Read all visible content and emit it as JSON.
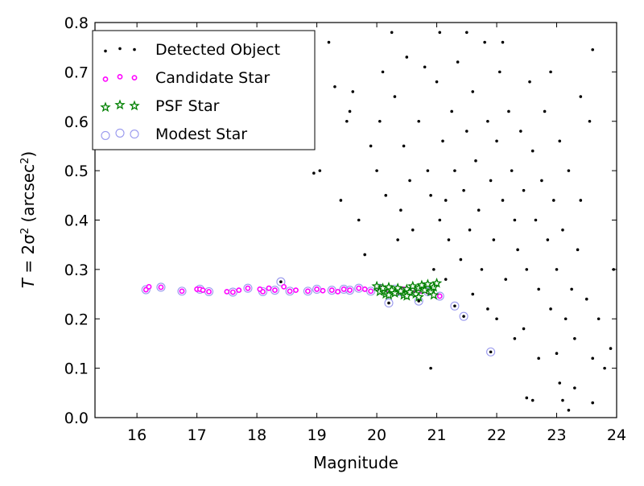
{
  "chart_data": {
    "type": "scatter",
    "title": "",
    "xlabel": "Magnitude",
    "ylabel_parts": {
      "lhs": "T",
      "eq": " = 2σ",
      "sup1": "2",
      "open": " (arcsec",
      "sup2": "2",
      "close": ")"
    },
    "xlim": [
      15.3,
      24.0
    ],
    "ylim": [
      0.0,
      0.8
    ],
    "xticks": [
      16,
      17,
      18,
      19,
      20,
      21,
      22,
      23,
      24
    ],
    "yticks": [
      0.0,
      0.1,
      0.2,
      0.3,
      0.4,
      0.5,
      0.6,
      0.7,
      0.8
    ],
    "legend_position": "top-left",
    "grid": false,
    "colors": {
      "detected": "#000000",
      "candidate": "#ff00ff",
      "psf": "#008000",
      "modest": "#9999ee"
    },
    "series": [
      {
        "name": "Detected Object",
        "marker": "dot",
        "points": [
          [
            18.4,
            0.275
          ],
          [
            20.9,
            0.1
          ],
          [
            21.9,
            0.133
          ],
          [
            20.2,
            0.232
          ],
          [
            20.7,
            0.236
          ],
          [
            21.3,
            0.226
          ],
          [
            21.45,
            0.205
          ],
          [
            19.05,
            0.5
          ],
          [
            18.95,
            0.495
          ],
          [
            19.55,
            0.62
          ],
          [
            19.5,
            0.6
          ],
          [
            19.9,
            0.55
          ],
          [
            19.4,
            0.44
          ],
          [
            19.7,
            0.4
          ],
          [
            20.1,
            0.7
          ],
          [
            20.25,
            0.78
          ],
          [
            20.8,
            0.71
          ],
          [
            19.8,
            0.33
          ],
          [
            20.0,
            0.5
          ],
          [
            20.05,
            0.6
          ],
          [
            20.3,
            0.65
          ],
          [
            20.5,
            0.73
          ],
          [
            20.45,
            0.55
          ],
          [
            20.55,
            0.48
          ],
          [
            20.4,
            0.42
          ],
          [
            20.6,
            0.38
          ],
          [
            20.7,
            0.6
          ],
          [
            20.85,
            0.5
          ],
          [
            20.9,
            0.45
          ],
          [
            20.95,
            0.3
          ],
          [
            21.0,
            0.68
          ],
          [
            21.05,
            0.78
          ],
          [
            21.1,
            0.56
          ],
          [
            21.15,
            0.44
          ],
          [
            21.2,
            0.36
          ],
          [
            21.25,
            0.62
          ],
          [
            21.3,
            0.5
          ],
          [
            21.35,
            0.72
          ],
          [
            21.4,
            0.32
          ],
          [
            21.45,
            0.46
          ],
          [
            21.5,
            0.58
          ],
          [
            21.55,
            0.38
          ],
          [
            21.6,
            0.66
          ],
          [
            21.65,
            0.52
          ],
          [
            21.7,
            0.42
          ],
          [
            21.75,
            0.3
          ],
          [
            21.8,
            0.76
          ],
          [
            21.85,
            0.6
          ],
          [
            21.9,
            0.48
          ],
          [
            21.95,
            0.36
          ],
          [
            22.0,
            0.56
          ],
          [
            22.05,
            0.7
          ],
          [
            22.1,
            0.44
          ],
          [
            22.15,
            0.28
          ],
          [
            22.2,
            0.62
          ],
          [
            22.25,
            0.5
          ],
          [
            22.3,
            0.4
          ],
          [
            22.35,
            0.34
          ],
          [
            22.4,
            0.58
          ],
          [
            22.45,
            0.46
          ],
          [
            22.5,
            0.3
          ],
          [
            22.55,
            0.68
          ],
          [
            22.6,
            0.54
          ],
          [
            22.65,
            0.4
          ],
          [
            22.7,
            0.26
          ],
          [
            22.75,
            0.48
          ],
          [
            22.8,
            0.62
          ],
          [
            22.85,
            0.36
          ],
          [
            22.9,
            0.22
          ],
          [
            22.95,
            0.44
          ],
          [
            23.0,
            0.3
          ],
          [
            23.05,
            0.56
          ],
          [
            23.1,
            0.38
          ],
          [
            23.15,
            0.2
          ],
          [
            23.2,
            0.5
          ],
          [
            23.25,
            0.26
          ],
          [
            23.3,
            0.16
          ],
          [
            23.35,
            0.34
          ],
          [
            23.4,
            0.44
          ],
          [
            23.5,
            0.24
          ],
          [
            23.6,
            0.12
          ],
          [
            23.7,
            0.2
          ],
          [
            23.8,
            0.1
          ],
          [
            23.9,
            0.14
          ],
          [
            23.95,
            0.3
          ],
          [
            23.6,
            0.745
          ],
          [
            23.55,
            0.6
          ],
          [
            22.5,
            0.04
          ],
          [
            22.6,
            0.035
          ],
          [
            23.05,
            0.07
          ],
          [
            23.1,
            0.035
          ],
          [
            23.2,
            0.015
          ],
          [
            23.6,
            0.03
          ],
          [
            19.2,
            0.76
          ],
          [
            19.3,
            0.67
          ],
          [
            20.35,
            0.36
          ],
          [
            20.15,
            0.45
          ],
          [
            19.6,
            0.66
          ],
          [
            21.05,
            0.4
          ],
          [
            21.5,
            0.78
          ],
          [
            22.1,
            0.76
          ],
          [
            22.9,
            0.7
          ],
          [
            23.4,
            0.65
          ],
          [
            22.3,
            0.16
          ],
          [
            22.7,
            0.12
          ],
          [
            22.0,
            0.2
          ],
          [
            21.6,
            0.25
          ],
          [
            21.85,
            0.22
          ],
          [
            22.45,
            0.18
          ],
          [
            23.0,
            0.13
          ],
          [
            23.3,
            0.06
          ],
          [
            21.15,
            0.28
          ]
        ]
      },
      {
        "name": "Candidate Star",
        "marker": "small-circle",
        "points": [
          [
            16.15,
            0.259
          ],
          [
            16.2,
            0.265
          ],
          [
            16.4,
            0.264
          ],
          [
            16.75,
            0.256
          ],
          [
            17.0,
            0.26
          ],
          [
            17.05,
            0.26
          ],
          [
            17.1,
            0.258
          ],
          [
            17.2,
            0.255
          ],
          [
            17.5,
            0.255
          ],
          [
            17.6,
            0.254
          ],
          [
            17.7,
            0.258
          ],
          [
            17.85,
            0.262
          ],
          [
            18.05,
            0.26
          ],
          [
            18.1,
            0.255
          ],
          [
            18.2,
            0.262
          ],
          [
            18.3,
            0.258
          ],
          [
            18.45,
            0.265
          ],
          [
            18.55,
            0.256
          ],
          [
            18.65,
            0.258
          ],
          [
            18.85,
            0.256
          ],
          [
            19.0,
            0.26
          ],
          [
            19.1,
            0.257
          ],
          [
            19.25,
            0.258
          ],
          [
            19.35,
            0.255
          ],
          [
            19.45,
            0.26
          ],
          [
            19.55,
            0.258
          ],
          [
            19.7,
            0.262
          ],
          [
            19.8,
            0.26
          ],
          [
            19.9,
            0.256
          ],
          [
            20.05,
            0.262
          ],
          [
            20.2,
            0.258
          ],
          [
            20.35,
            0.255
          ],
          [
            20.45,
            0.26
          ],
          [
            20.6,
            0.258
          ],
          [
            20.75,
            0.256
          ],
          [
            20.85,
            0.255
          ],
          [
            21.05,
            0.246
          ]
        ]
      },
      {
        "name": "PSF Star",
        "marker": "star",
        "points": [
          [
            20.0,
            0.266
          ],
          [
            20.05,
            0.255
          ],
          [
            20.1,
            0.262
          ],
          [
            20.15,
            0.25
          ],
          [
            20.2,
            0.264
          ],
          [
            20.25,
            0.258
          ],
          [
            20.3,
            0.252
          ],
          [
            20.35,
            0.262
          ],
          [
            20.4,
            0.256
          ],
          [
            20.45,
            0.248
          ],
          [
            20.5,
            0.26
          ],
          [
            20.55,
            0.254
          ],
          [
            20.6,
            0.266
          ],
          [
            20.65,
            0.25
          ],
          [
            20.7,
            0.262
          ],
          [
            20.75,
            0.268
          ],
          [
            20.8,
            0.258
          ],
          [
            20.85,
            0.27
          ],
          [
            20.9,
            0.255
          ],
          [
            20.95,
            0.264
          ],
          [
            21.0,
            0.272
          ],
          [
            20.2,
            0.248
          ],
          [
            20.5,
            0.246
          ],
          [
            20.7,
            0.244
          ],
          [
            20.95,
            0.248
          ]
        ]
      },
      {
        "name": "Modest Star",
        "marker": "open-circle",
        "points": [
          [
            16.15,
            0.259
          ],
          [
            16.4,
            0.264
          ],
          [
            16.75,
            0.256
          ],
          [
            17.05,
            0.26
          ],
          [
            17.2,
            0.255
          ],
          [
            17.6,
            0.254
          ],
          [
            17.85,
            0.262
          ],
          [
            18.1,
            0.255
          ],
          [
            18.3,
            0.258
          ],
          [
            18.4,
            0.275
          ],
          [
            18.55,
            0.256
          ],
          [
            19.0,
            0.26
          ],
          [
            19.25,
            0.258
          ],
          [
            19.45,
            0.26
          ],
          [
            19.7,
            0.262
          ],
          [
            19.9,
            0.256
          ],
          [
            20.05,
            0.262
          ],
          [
            20.2,
            0.232
          ],
          [
            20.35,
            0.255
          ],
          [
            20.6,
            0.258
          ],
          [
            20.7,
            0.236
          ],
          [
            20.85,
            0.255
          ],
          [
            21.05,
            0.246
          ],
          [
            21.3,
            0.226
          ],
          [
            21.45,
            0.205
          ],
          [
            21.9,
            0.133
          ],
          [
            20.3,
            0.26
          ],
          [
            20.45,
            0.252
          ],
          [
            19.55,
            0.258
          ],
          [
            18.85,
            0.256
          ]
        ]
      }
    ]
  }
}
